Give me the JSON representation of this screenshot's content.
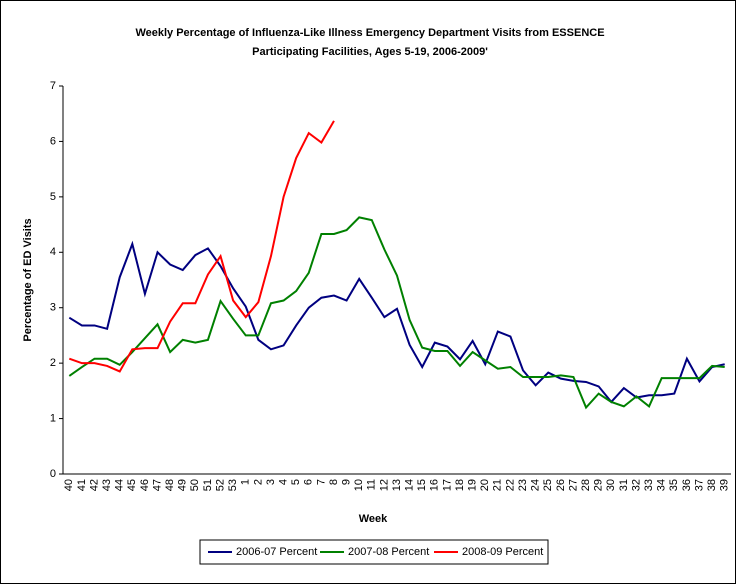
{
  "chart_data": {
    "type": "line",
    "title": "Weekly Percentage of Influenza-Like Illness Emergency Department Visits from ESSENCE Participating Facilities, Ages 5-19, 2006-2009'",
    "x_label": "Week",
    "y_label": "Percentage of ED Visits",
    "categories": [
      "40",
      "41",
      "42",
      "43",
      "44",
      "45",
      "46",
      "47",
      "48",
      "49",
      "50",
      "51",
      "52",
      "53",
      "1",
      "2",
      "3",
      "4",
      "5",
      "6",
      "7",
      "8",
      "9",
      "10",
      "11",
      "12",
      "13",
      "14",
      "15",
      "16",
      "17",
      "18",
      "19",
      "20",
      "21",
      "22",
      "23",
      "24",
      "25",
      "26",
      "27",
      "28",
      "29",
      "30",
      "31",
      "32",
      "33",
      "34",
      "35",
      "36",
      "37",
      "38",
      "39"
    ],
    "series": [
      {
        "name": "2006-07 Percent",
        "color": "#000080",
        "values": [
          2.82,
          2.68,
          2.68,
          2.62,
          3.55,
          4.15,
          3.25,
          4.0,
          3.78,
          3.68,
          3.95,
          4.07,
          3.75,
          3.35,
          3.02,
          2.42,
          2.25,
          2.32,
          2.68,
          3.0,
          3.18,
          3.22,
          3.13,
          3.52,
          3.18,
          2.83,
          2.98,
          2.33,
          1.93,
          2.37,
          2.3,
          2.07,
          2.4,
          1.98,
          2.57,
          2.48,
          1.87,
          1.6,
          1.83,
          1.72,
          1.68,
          1.66,
          1.58,
          1.3,
          1.55,
          1.38,
          1.42,
          1.42,
          1.45,
          2.08,
          1.67,
          1.93,
          1.98
        ]
      },
      {
        "name": "2007-08 Percent",
        "color": "#008000",
        "values": [
          1.77,
          1.93,
          2.08,
          2.08,
          1.97,
          2.2,
          2.45,
          2.7,
          2.2,
          2.42,
          2.37,
          2.42,
          3.12,
          2.8,
          2.5,
          2.5,
          3.08,
          3.13,
          3.3,
          3.63,
          4.33,
          4.33,
          4.4,
          4.63,
          4.58,
          4.05,
          3.58,
          2.78,
          2.28,
          2.22,
          2.22,
          1.95,
          2.2,
          2.05,
          1.9,
          1.93,
          1.75,
          1.75,
          1.75,
          1.78,
          1.75,
          1.2,
          1.45,
          1.3,
          1.22,
          1.4,
          1.22,
          1.73,
          1.73,
          1.73,
          1.73,
          1.95,
          1.93
        ]
      },
      {
        "name": "2008-09 Percent",
        "color": "#ff0000",
        "values": [
          2.08,
          2.0,
          2.0,
          1.95,
          1.85,
          2.25,
          2.27,
          2.27,
          2.75,
          3.08,
          3.08,
          3.6,
          3.93,
          3.13,
          2.83,
          3.1,
          3.93,
          5.0,
          5.7,
          6.15,
          5.98,
          6.37,
          null,
          null,
          null,
          null,
          null,
          null,
          null,
          null,
          null,
          null,
          null,
          null,
          null,
          null,
          null,
          null,
          null,
          null,
          null,
          null,
          null,
          null,
          null,
          null,
          null,
          null,
          null,
          null,
          null,
          null,
          null
        ]
      }
    ],
    "ylim": [
      0,
      7
    ],
    "yticks": [
      0,
      1,
      2,
      3,
      4,
      5,
      6,
      7
    ],
    "grid": false,
    "legend": "bottom"
  }
}
